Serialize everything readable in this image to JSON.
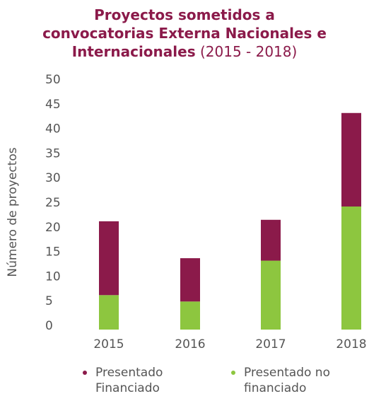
{
  "chart_data": {
    "type": "stacked_bar",
    "title": "Proyectos sometidos a convocatorias Externa Nacionales e Internacionales",
    "subtitle": "(2015 - 2018)",
    "ylabel": "Número de proyectos",
    "categories": [
      "2015",
      "2016",
      "2017",
      "2018"
    ],
    "series": [
      {
        "name": "Presentado no financiado",
        "color": "#8dc63f",
        "values": [
          7,
          5.7,
          14,
          25
        ]
      },
      {
        "name": "Presentado Financiado",
        "color": "#8b1a4a",
        "values": [
          15,
          8.8,
          8.3,
          19
        ]
      }
    ],
    "legend_order": [
      1,
      0
    ],
    "ylim": [
      0,
      50
    ],
    "yticks": [
      0,
      5,
      10,
      15,
      20,
      25,
      30,
      35,
      40,
      45,
      50
    ],
    "grid": false
  }
}
